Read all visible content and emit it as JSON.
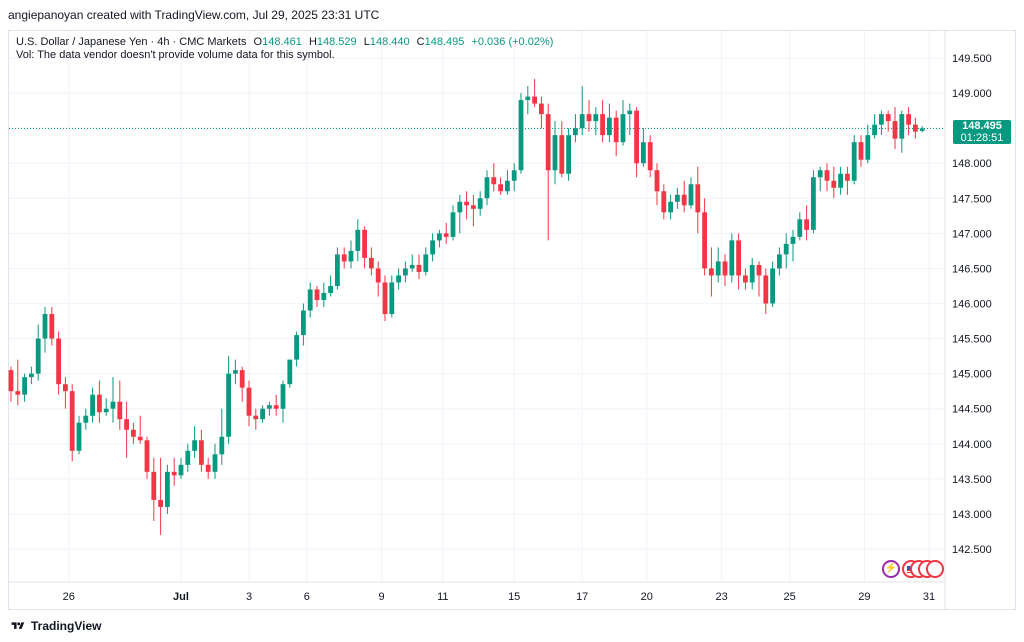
{
  "caption": "angiepanoyan created with TradingView.com, Jul 29, 2025 23:31 UTC",
  "legend": {
    "symbol": "U.S. Dollar / Japanese Yen · 4h · CMC Markets",
    "o_label": "O",
    "o_value": "148.461",
    "h_label": "H",
    "h_value": "148.529",
    "l_label": "L",
    "l_value": "148.440",
    "c_label": "C",
    "c_value": "148.495",
    "change": "+0.036 (+0.02%)"
  },
  "vol_note": "Vol: The data vendor doesn't provide volume data for this symbol.",
  "price_tag": {
    "price": "148.495",
    "countdown": "01:28:51"
  },
  "footer": {
    "brand": "TradingView"
  },
  "colors": {
    "up": "#089981",
    "down": "#f23645",
    "grid": "#f0f3fa",
    "axis_text": "#131722"
  },
  "chart_data": {
    "type": "candlestick",
    "title": "U.S. Dollar / Japanese Yen · 4h · CMC Markets",
    "ylim": [
      142.2,
      149.9
    ],
    "y_ticks": [
      142.5,
      143.0,
      143.5,
      144.0,
      144.5,
      145.0,
      145.5,
      146.0,
      146.5,
      147.0,
      147.5,
      148.0,
      148.5,
      149.0,
      149.5
    ],
    "y_tick_labels": [
      "142.500",
      "143.000",
      "143.500",
      "144.000",
      "144.500",
      "145.000",
      "145.500",
      "146.000",
      "146.500",
      "147.000",
      "147.500",
      "148.000",
      "148.500",
      "149.000",
      "149.500"
    ],
    "x_tick_labels": [
      "26",
      "Jul",
      "3",
      "6",
      "9",
      "11",
      "15",
      "17",
      "20",
      "23",
      "25",
      "29",
      "31"
    ],
    "x_tick_bar_index": [
      8.5,
      25,
      35,
      43.5,
      54.5,
      63.5,
      74,
      84,
      93.5,
      104.5,
      114.5,
      125.5,
      135
    ],
    "last_price": 148.495,
    "last_price_line": "dotted",
    "grid": true,
    "ohlc": [
      [
        145.05,
        145.1,
        144.6,
        144.75
      ],
      [
        144.75,
        145.2,
        144.55,
        144.7
      ],
      [
        144.7,
        145.0,
        144.6,
        144.95
      ],
      [
        144.95,
        145.1,
        144.85,
        145.0
      ],
      [
        145.0,
        145.7,
        144.9,
        145.5
      ],
      [
        145.5,
        145.95,
        145.3,
        145.85
      ],
      [
        145.85,
        145.95,
        145.4,
        145.5
      ],
      [
        145.5,
        145.6,
        144.7,
        144.85
      ],
      [
        144.85,
        144.95,
        144.5,
        144.75
      ],
      [
        144.75,
        144.85,
        143.75,
        143.9
      ],
      [
        143.9,
        144.4,
        143.85,
        144.3
      ],
      [
        144.3,
        144.5,
        144.2,
        144.4
      ],
      [
        144.4,
        144.8,
        144.3,
        144.7
      ],
      [
        144.7,
        144.9,
        144.3,
        144.45
      ],
      [
        144.45,
        144.65,
        144.4,
        144.5
      ],
      [
        144.5,
        144.95,
        144.3,
        144.6
      ],
      [
        144.6,
        144.9,
        144.2,
        144.35
      ],
      [
        144.35,
        144.6,
        143.8,
        144.2
      ],
      [
        144.2,
        144.3,
        144.0,
        144.1
      ],
      [
        144.1,
        144.4,
        144.0,
        144.05
      ],
      [
        144.05,
        144.1,
        143.5,
        143.6
      ],
      [
        143.6,
        143.8,
        142.9,
        143.2
      ],
      [
        143.2,
        143.8,
        142.7,
        143.1
      ],
      [
        143.1,
        143.7,
        143.0,
        143.6
      ],
      [
        143.6,
        143.8,
        143.4,
        143.55
      ],
      [
        143.55,
        143.8,
        143.5,
        143.7
      ],
      [
        143.7,
        144.0,
        143.6,
        143.9
      ],
      [
        143.9,
        144.25,
        143.8,
        144.05
      ],
      [
        144.05,
        144.2,
        143.6,
        143.7
      ],
      [
        143.7,
        143.8,
        143.5,
        143.6
      ],
      [
        143.6,
        144.0,
        143.5,
        143.85
      ],
      [
        143.85,
        144.5,
        143.7,
        144.1
      ],
      [
        144.1,
        145.25,
        144.0,
        145.0
      ],
      [
        145.0,
        145.2,
        144.85,
        145.05
      ],
      [
        145.05,
        145.1,
        144.6,
        144.8
      ],
      [
        144.8,
        144.9,
        144.25,
        144.4
      ],
      [
        144.4,
        144.5,
        144.2,
        144.35
      ],
      [
        144.35,
        144.55,
        144.3,
        144.5
      ],
      [
        144.5,
        144.6,
        144.4,
        144.55
      ],
      [
        144.55,
        144.7,
        144.4,
        144.5
      ],
      [
        144.5,
        144.9,
        144.3,
        144.85
      ],
      [
        144.85,
        145.2,
        144.8,
        145.2
      ],
      [
        145.2,
        145.6,
        145.1,
        145.55
      ],
      [
        145.55,
        146.0,
        145.4,
        145.9
      ],
      [
        145.9,
        146.3,
        145.8,
        146.2
      ],
      [
        146.2,
        146.25,
        145.95,
        146.05
      ],
      [
        146.05,
        146.3,
        145.95,
        146.15
      ],
      [
        146.15,
        146.4,
        146.1,
        146.25
      ],
      [
        146.25,
        146.8,
        146.2,
        146.7
      ],
      [
        146.7,
        146.8,
        146.5,
        146.6
      ],
      [
        146.6,
        146.9,
        146.5,
        146.75
      ],
      [
        146.75,
        147.2,
        146.6,
        147.05
      ],
      [
        147.05,
        147.1,
        146.5,
        146.65
      ],
      [
        146.65,
        146.8,
        146.4,
        146.5
      ],
      [
        146.5,
        146.6,
        146.1,
        146.3
      ],
      [
        146.3,
        146.4,
        145.75,
        145.85
      ],
      [
        145.85,
        146.4,
        145.8,
        146.3
      ],
      [
        146.3,
        146.5,
        146.2,
        146.4
      ],
      [
        146.4,
        146.6,
        146.3,
        146.5
      ],
      [
        146.5,
        146.7,
        146.45,
        146.55
      ],
      [
        146.55,
        146.7,
        146.35,
        146.45
      ],
      [
        146.45,
        146.8,
        146.4,
        146.7
      ],
      [
        146.7,
        147.0,
        146.6,
        146.9
      ],
      [
        146.9,
        147.05,
        146.8,
        147.0
      ],
      [
        147.0,
        147.15,
        146.85,
        146.95
      ],
      [
        146.95,
        147.4,
        146.9,
        147.3
      ],
      [
        147.3,
        147.55,
        147.0,
        147.45
      ],
      [
        147.45,
        147.6,
        147.2,
        147.4
      ],
      [
        147.4,
        147.55,
        147.1,
        147.35
      ],
      [
        147.35,
        147.6,
        147.25,
        147.5
      ],
      [
        147.5,
        147.9,
        147.4,
        147.8
      ],
      [
        147.8,
        148.0,
        147.6,
        147.7
      ],
      [
        147.7,
        147.8,
        147.55,
        147.6
      ],
      [
        147.6,
        147.9,
        147.55,
        147.75
      ],
      [
        147.75,
        148.0,
        147.6,
        147.9
      ],
      [
        147.9,
        149.0,
        147.85,
        148.9
      ],
      [
        148.9,
        149.1,
        148.7,
        148.95
      ],
      [
        148.95,
        149.2,
        148.8,
        148.85
      ],
      [
        148.85,
        148.95,
        148.5,
        148.7
      ],
      [
        148.7,
        148.85,
        146.9,
        147.9
      ],
      [
        147.9,
        148.6,
        147.7,
        148.4
      ],
      [
        148.4,
        148.6,
        147.8,
        147.85
      ],
      [
        147.85,
        148.5,
        147.75,
        148.4
      ],
      [
        148.4,
        148.7,
        148.3,
        148.5
      ],
      [
        148.5,
        149.1,
        148.4,
        148.7
      ],
      [
        148.7,
        148.9,
        148.45,
        148.6
      ],
      [
        148.6,
        148.8,
        148.4,
        148.7
      ],
      [
        148.7,
        148.9,
        148.3,
        148.4
      ],
      [
        148.4,
        148.85,
        148.3,
        148.65
      ],
      [
        148.65,
        148.75,
        148.1,
        148.3
      ],
      [
        148.3,
        148.9,
        148.25,
        148.7
      ],
      [
        148.7,
        148.85,
        148.4,
        148.75
      ],
      [
        148.75,
        148.8,
        147.8,
        148.0
      ],
      [
        148.0,
        148.5,
        147.95,
        148.3
      ],
      [
        148.3,
        148.4,
        147.8,
        147.9
      ],
      [
        147.9,
        148.0,
        147.4,
        147.6
      ],
      [
        147.6,
        147.7,
        147.2,
        147.3
      ],
      [
        147.3,
        147.55,
        147.2,
        147.45
      ],
      [
        147.45,
        147.65,
        147.35,
        147.55
      ],
      [
        147.55,
        147.75,
        147.3,
        147.4
      ],
      [
        147.4,
        147.8,
        147.35,
        147.7
      ],
      [
        147.7,
        147.95,
        147.0,
        147.3
      ],
      [
        147.3,
        147.5,
        146.4,
        146.5
      ],
      [
        146.5,
        146.8,
        146.1,
        146.4
      ],
      [
        146.4,
        146.8,
        146.3,
        146.6
      ],
      [
        146.6,
        146.7,
        146.25,
        146.4
      ],
      [
        146.4,
        147.0,
        146.3,
        146.9
      ],
      [
        146.9,
        147.0,
        146.2,
        146.4
      ],
      [
        146.4,
        146.5,
        146.2,
        146.3
      ],
      [
        146.3,
        146.65,
        146.2,
        146.55
      ],
      [
        146.55,
        146.6,
        146.1,
        146.4
      ],
      [
        146.4,
        146.5,
        145.85,
        146.0
      ],
      [
        146.0,
        146.6,
        145.95,
        146.5
      ],
      [
        146.5,
        146.8,
        146.4,
        146.7
      ],
      [
        146.7,
        147.0,
        146.5,
        146.85
      ],
      [
        146.85,
        147.05,
        146.6,
        146.95
      ],
      [
        146.95,
        147.3,
        146.9,
        147.2
      ],
      [
        147.2,
        147.4,
        146.9,
        147.05
      ],
      [
        147.05,
        147.9,
        147.0,
        147.8
      ],
      [
        147.8,
        147.95,
        147.6,
        147.9
      ],
      [
        147.9,
        148.0,
        147.6,
        147.75
      ],
      [
        147.75,
        147.95,
        147.5,
        147.65
      ],
      [
        147.65,
        147.95,
        147.55,
        147.85
      ],
      [
        147.85,
        147.95,
        147.55,
        147.75
      ],
      [
        147.75,
        148.4,
        147.7,
        148.3
      ],
      [
        148.3,
        148.4,
        147.95,
        148.05
      ],
      [
        148.05,
        148.55,
        148.0,
        148.4
      ],
      [
        148.4,
        148.7,
        148.35,
        148.55
      ],
      [
        148.55,
        148.75,
        148.4,
        148.7
      ],
      [
        148.7,
        148.75,
        148.45,
        148.6
      ],
      [
        148.6,
        148.8,
        148.2,
        148.35
      ],
      [
        148.35,
        148.75,
        148.15,
        148.7
      ],
      [
        148.7,
        148.8,
        148.4,
        148.55
      ],
      [
        148.55,
        148.65,
        148.35,
        148.45
      ],
      [
        148.461,
        148.529,
        148.44,
        148.495
      ]
    ]
  }
}
